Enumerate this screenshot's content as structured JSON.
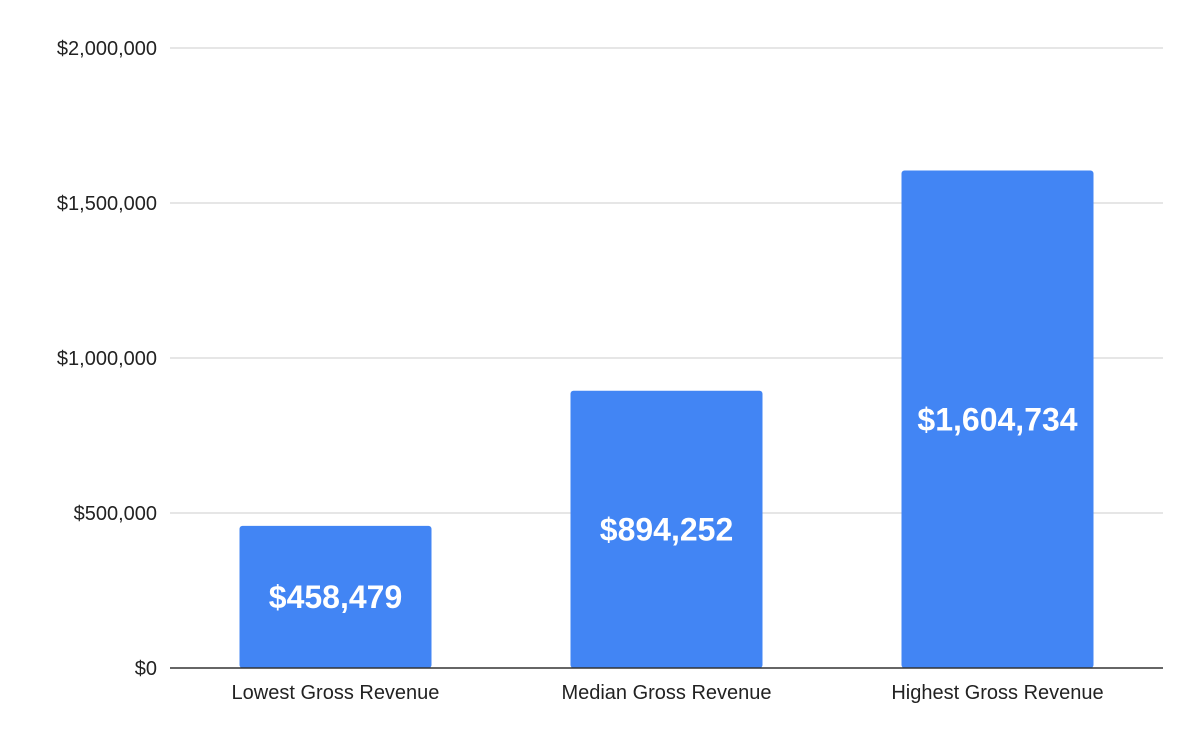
{
  "chart_data": {
    "type": "bar",
    "categories": [
      "Lowest Gross Revenue",
      "Median Gross Revenue",
      "Highest Gross Revenue"
    ],
    "values": [
      458479,
      894252,
      1604734
    ],
    "data_labels": [
      "$458,479",
      "$894,252",
      "$1,604,734"
    ],
    "y_ticks": [
      0,
      500000,
      1000000,
      1500000,
      2000000
    ],
    "y_tick_labels": [
      "$0",
      "$500,000",
      "$1,000,000",
      "$1,500,000",
      "$2,000,000"
    ],
    "ylim": [
      0,
      2000000
    ],
    "title": "",
    "xlabel": "",
    "ylabel": "",
    "grid": true,
    "legend": "none",
    "bar_color": "#4285f4"
  }
}
